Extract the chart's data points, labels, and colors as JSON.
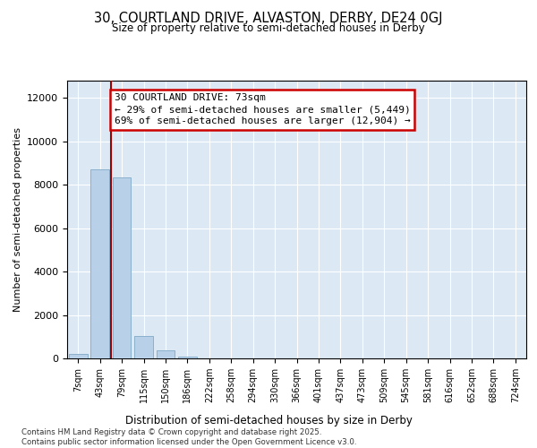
{
  "title_line1": "30, COURTLAND DRIVE, ALVASTON, DERBY, DE24 0GJ",
  "title_line2": "Size of property relative to semi-detached houses in Derby",
  "xlabel": "Distribution of semi-detached houses by size in Derby",
  "ylabel": "Number of semi-detached properties",
  "categories": [
    "7sqm",
    "43sqm",
    "79sqm",
    "115sqm",
    "150sqm",
    "186sqm",
    "222sqm",
    "258sqm",
    "294sqm",
    "330sqm",
    "366sqm",
    "401sqm",
    "437sqm",
    "473sqm",
    "509sqm",
    "545sqm",
    "581sqm",
    "616sqm",
    "652sqm",
    "688sqm",
    "724sqm"
  ],
  "values": [
    200,
    8700,
    8350,
    1050,
    380,
    80,
    0,
    0,
    0,
    0,
    0,
    0,
    0,
    0,
    0,
    0,
    0,
    0,
    0,
    0,
    0
  ],
  "bar_color": "#b8d0e8",
  "bar_edge_color": "#8ab0cc",
  "vline_x": 1.5,
  "vline_color": "#990000",
  "annotation_title": "30 COURTLAND DRIVE: 73sqm",
  "annotation_line1": "← 29% of semi-detached houses are smaller (5,449)",
  "annotation_line2": "69% of semi-detached houses are larger (12,904) →",
  "ylim": [
    0,
    12800
  ],
  "yticks": [
    0,
    2000,
    4000,
    6000,
    8000,
    10000,
    12000
  ],
  "bg_color": "#dce9f5",
  "footer1": "Contains HM Land Registry data © Crown copyright and database right 2025.",
  "footer2": "Contains public sector information licensed under the Open Government Licence v3.0."
}
